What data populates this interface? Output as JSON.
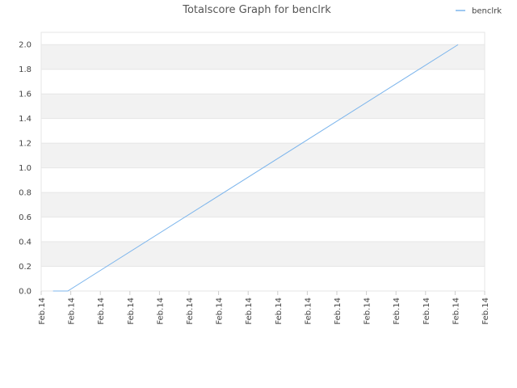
{
  "chart_data": {
    "type": "line",
    "title": "Totalscore Graph for benclrk",
    "xlim": [
      0,
      15
    ],
    "xticks": [
      {
        "value": 0,
        "label": "Feb.14"
      },
      {
        "value": 1,
        "label": "Feb.14"
      },
      {
        "value": 2,
        "label": "Feb.14"
      },
      {
        "value": 3,
        "label": "Feb.14"
      },
      {
        "value": 4,
        "label": "Feb.14"
      },
      {
        "value": 5,
        "label": "Feb.14"
      },
      {
        "value": 6,
        "label": "Feb.14"
      },
      {
        "value": 7,
        "label": "Feb.14"
      },
      {
        "value": 8,
        "label": "Feb.14"
      },
      {
        "value": 9,
        "label": "Feb.14"
      },
      {
        "value": 10,
        "label": "Feb.14"
      },
      {
        "value": 11,
        "label": "Feb.14"
      },
      {
        "value": 12,
        "label": "Feb.14"
      },
      {
        "value": 13,
        "label": "Feb.14"
      },
      {
        "value": 14,
        "label": "Feb.14"
      },
      {
        "value": 15,
        "label": "Feb.14"
      }
    ],
    "ylim": [
      0,
      2.1
    ],
    "yticks": [
      {
        "value": 0,
        "label": "0.0"
      },
      0.2,
      0.4,
      0.6,
      0.8,
      {
        "value": 1,
        "label": "1.0"
      },
      1.2,
      1.4,
      1.6,
      1.8,
      {
        "value": 2,
        "label": "2.0"
      }
    ],
    "grid": true,
    "legend": "top-right",
    "series": [
      {
        "name": "benclrk",
        "color": "#7cb5ec",
        "x": [
          0.4,
          0.9,
          14.1
        ],
        "values": [
          0,
          0,
          2.0
        ]
      }
    ]
  }
}
